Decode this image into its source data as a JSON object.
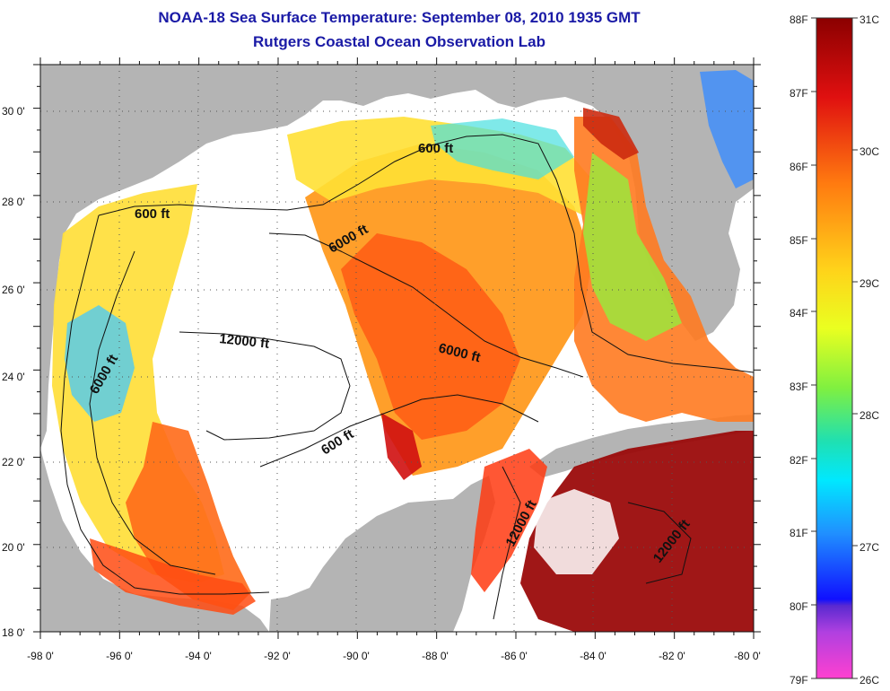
{
  "header": {
    "title": "NOAA-18 Sea Surface Temperature:  September 08, 2010 1935 GMT",
    "subtitle": "Rutgers Coastal Ocean Observation Lab"
  },
  "map": {
    "x_ticks": [
      "-98 0'",
      "-96 0'",
      "-94 0'",
      "-92 0'",
      "-90 0'",
      "-88 0'",
      "-86 0'",
      "-84 0'",
      "-82 0'",
      "-80 0'"
    ],
    "y_ticks": [
      "30 0'",
      "28 0'",
      "26 0'",
      "24 0'",
      "22 0'",
      "20 0'",
      "18 0'"
    ],
    "lon_range": [
      -98,
      -80
    ],
    "lat_range": [
      18,
      31
    ],
    "contour_labels": [
      "600 ft",
      "600 ft",
      "6000 ft",
      "12000 ft",
      "6000 ft",
      "6000 ft",
      "600 ft",
      "12000 ft",
      "12000 ft"
    ],
    "colors": {
      "land": "#b4b4b4",
      "no_data": "#ffffff",
      "gulf_stream_hot": "#8b0000"
    }
  },
  "colorbar": {
    "fahrenheit_labels": [
      "88F",
      "87F",
      "86F",
      "85F",
      "84F",
      "83F",
      "82F",
      "81F",
      "80F",
      "79F"
    ],
    "celsius_labels": [
      "31C",
      "30C",
      "29C",
      "28C",
      "27C",
      "26C"
    ],
    "range_f": [
      79,
      88
    ],
    "range_c": [
      26,
      31
    ]
  }
}
